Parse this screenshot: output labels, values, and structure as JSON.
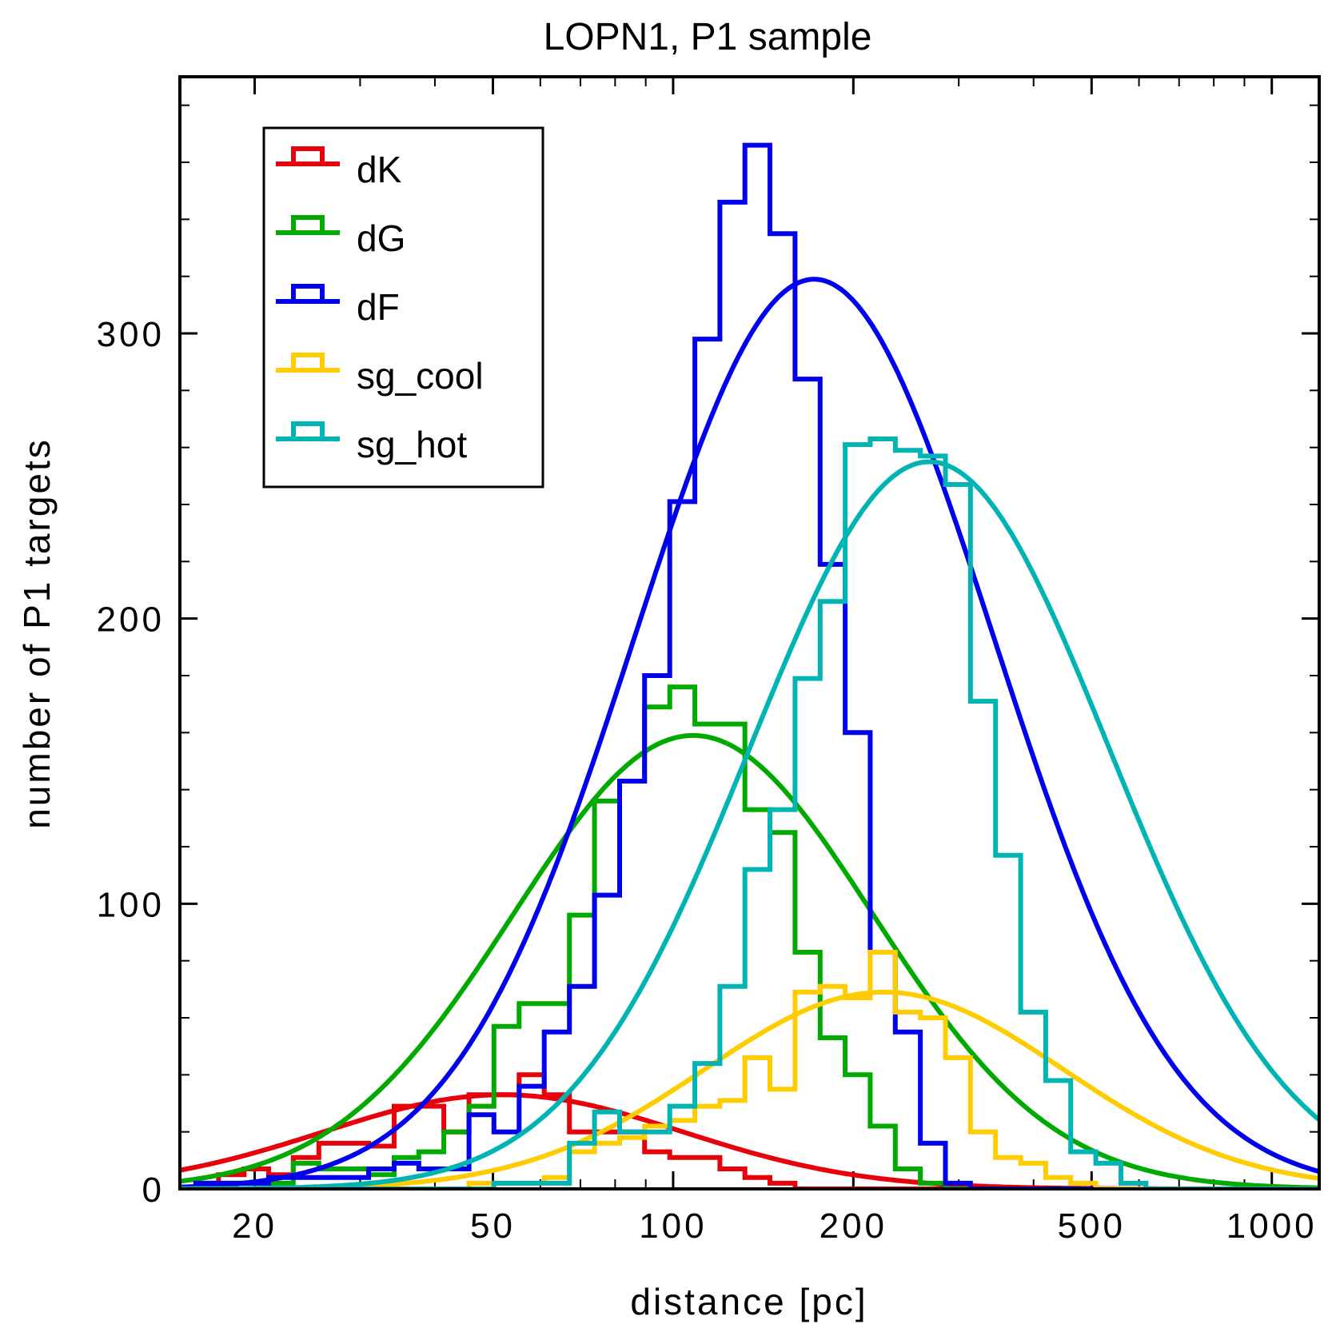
{
  "chart_data": {
    "type": "histogram",
    "title": "LOPN1, P1 sample",
    "xlabel": "distance [pc]",
    "ylabel": "number of P1 targets",
    "xscale": "log",
    "xlim": [
      15,
      1200
    ],
    "ylim": [
      0,
      390
    ],
    "xticks": [
      20,
      50,
      100,
      200,
      500,
      1000
    ],
    "xtick_labels": [
      "20",
      "50",
      "100",
      "200",
      "500",
      "1000"
    ],
    "yticks": [
      0,
      100,
      200,
      300
    ],
    "ytick_labels": [
      "0",
      "100",
      "200",
      "300"
    ],
    "legend_position": "top-left",
    "bin_edges": [
      15.8,
      17.4,
      19.2,
      21.1,
      23.2,
      25.6,
      28.2,
      31.0,
      34.2,
      37.6,
      41.4,
      45.6,
      50.2,
      55.3,
      60.9,
      67.1,
      73.9,
      81.4,
      89.6,
      98.7,
      108.7,
      119.7,
      131.8,
      145.1,
      159.8,
      176.0,
      193.8,
      213.4,
      235.0,
      258.8,
      285.0,
      313.8,
      345.6,
      380.6,
      419.1,
      461.5,
      508.2,
      559.7,
      616.3,
      678.7,
      747.4,
      823.1,
      906.4,
      998.1,
      1099.1,
      1210.3
    ],
    "series": [
      {
        "name": "dK",
        "color": "#e8000b",
        "counts": [
          2,
          5,
          7,
          5,
          11,
          16,
          16,
          15,
          29,
          29,
          20,
          33,
          33,
          40,
          33,
          20,
          20,
          20,
          13,
          11,
          11,
          7,
          4,
          2,
          0,
          0,
          0,
          0,
          0,
          0,
          0,
          0,
          0,
          0,
          0,
          0,
          0,
          0,
          0,
          0,
          0,
          0,
          0,
          0,
          0
        ],
        "fit_curve": {
          "model": "gaussian in log distance",
          "peak_distance": 52,
          "peak_count": 33
        }
      },
      {
        "name": "dG",
        "color": "#00aa00",
        "counts": [
          0,
          2,
          2,
          2,
          9,
          7,
          7,
          5,
          11,
          13,
          20,
          29,
          57,
          65,
          65,
          96,
          136,
          143,
          169,
          176,
          163,
          163,
          133,
          125,
          83,
          53,
          40,
          22,
          7,
          2,
          0,
          0,
          0,
          0,
          0,
          0,
          0,
          0,
          0,
          0,
          0,
          0,
          0,
          0,
          0
        ],
        "fit_curve": {
          "model": "gaussian in log distance",
          "peak_distance": 108,
          "peak_count": 159
        }
      },
      {
        "name": "dF",
        "color": "#0000ee",
        "counts": [
          2,
          2,
          2,
          4,
          4,
          4,
          4,
          7,
          9,
          7,
          7,
          26,
          20,
          36,
          55,
          71,
          103,
          143,
          180,
          241,
          298,
          346,
          366,
          335,
          284,
          219,
          160,
          83,
          55,
          16,
          2,
          0,
          0,
          0,
          0,
          0,
          0,
          0,
          0,
          0,
          0,
          0,
          0,
          0,
          0
        ],
        "fit_curve": {
          "model": "gaussian in log distance",
          "peak_distance": 172,
          "peak_count": 319
        }
      },
      {
        "name": "sg_cool",
        "color": "#ffcc00",
        "counts": [
          0,
          0,
          0,
          0,
          0,
          0,
          0,
          0,
          0,
          0,
          0,
          2,
          2,
          2,
          4,
          13,
          16,
          18,
          22,
          24,
          29,
          31,
          46,
          35,
          69,
          71,
          67,
          83,
          62,
          60,
          46,
          20,
          11,
          9,
          4,
          2,
          0,
          0,
          0,
          0,
          0,
          0,
          0,
          0,
          0
        ],
        "fit_curve": {
          "model": "gaussian in log distance",
          "peak_distance": 225,
          "peak_count": 69
        }
      },
      {
        "name": "sg_hot",
        "color": "#00b4b4",
        "counts": [
          0,
          0,
          0,
          0,
          0,
          0,
          0,
          0,
          0,
          0,
          0,
          0,
          2,
          2,
          2,
          16,
          27,
          20,
          20,
          29,
          44,
          71,
          112,
          133,
          179,
          206,
          261,
          263,
          259,
          257,
          247,
          171,
          117,
          62,
          38,
          13,
          9,
          2,
          0,
          0,
          0,
          0,
          0,
          0,
          0
        ],
        "fit_curve": {
          "model": "gaussian in log distance",
          "peak_distance": 268,
          "peak_count": 255
        }
      }
    ]
  }
}
